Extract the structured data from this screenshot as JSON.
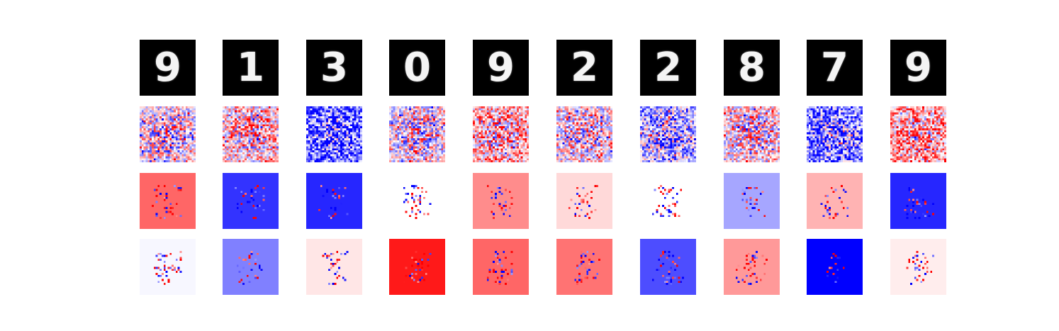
{
  "digits": [
    "9",
    "1",
    "3",
    "0",
    "9",
    "2",
    "2",
    "8",
    "7",
    "9"
  ],
  "row_kinds": [
    "input-digit",
    "noise-map",
    "attribution-map",
    "attribution-map"
  ],
  "colormap": {
    "negative": "#0000ff",
    "neutral": "#ffffff",
    "positive": "#ff0000"
  },
  "input_background": "#000000",
  "attribution_row_1_base": [
    0.6,
    -0.8,
    -0.85,
    0.0,
    0.45,
    0.15,
    0.0,
    -0.35,
    0.3,
    -0.85
  ],
  "attribution_row_2_base": [
    -0.03,
    -0.5,
    0.1,
    0.9,
    0.6,
    0.55,
    -0.7,
    0.4,
    -1.0,
    0.07
  ],
  "noise_bias": [
    0.0,
    0.15,
    -0.55,
    0.0,
    0.25,
    0.05,
    -0.25,
    0.1,
    -0.45,
    0.3
  ]
}
